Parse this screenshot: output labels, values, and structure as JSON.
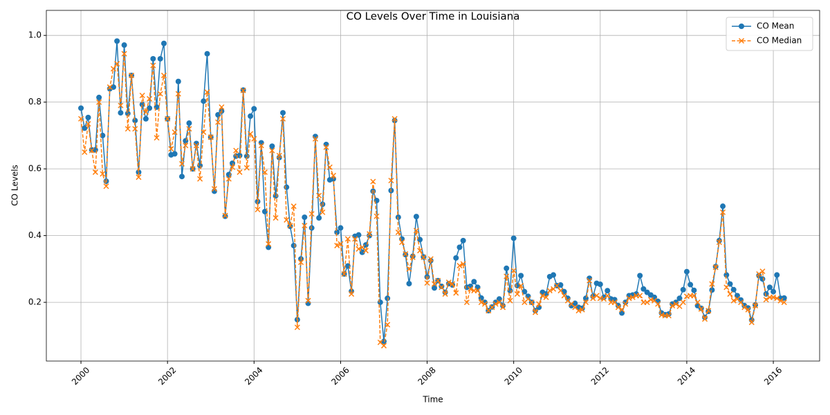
{
  "chart_data": {
    "type": "line",
    "title": "CO Levels Over Time in Louisiana",
    "xlabel": "Time",
    "ylabel": "CO Levels",
    "xlim": [
      1999.2,
      2017.07
    ],
    "ylim": [
      0.024,
      1.075
    ],
    "xticks": [
      2000,
      2002,
      2004,
      2006,
      2008,
      2010,
      2012,
      2014,
      2016
    ],
    "yticks": [
      0.2,
      0.4,
      0.6,
      0.8,
      {
        "value": 1,
        "label": "1.0"
      }
    ],
    "grid": true,
    "legend": "upper right",
    "x": [
      2000,
      2000.083,
      2000.167,
      2000.25,
      2000.333,
      2000.417,
      2000.5,
      2000.583,
      2000.667,
      2000.75,
      2000.833,
      2000.917,
      2001,
      2001.083,
      2001.167,
      2001.25,
      2001.333,
      2001.417,
      2001.5,
      2001.583,
      2001.667,
      2001.75,
      2001.833,
      2001.917,
      2002,
      2002.083,
      2002.167,
      2002.25,
      2002.333,
      2002.417,
      2002.5,
      2002.583,
      2002.667,
      2002.75,
      2002.833,
      2002.917,
      2003,
      2003.083,
      2003.167,
      2003.25,
      2003.333,
      2003.417,
      2003.5,
      2003.583,
      2003.667,
      2003.75,
      2003.833,
      2003.917,
      2004,
      2004.083,
      2004.167,
      2004.25,
      2004.333,
      2004.417,
      2004.5,
      2004.583,
      2004.667,
      2004.75,
      2004.833,
      2004.917,
      2005,
      2005.083,
      2005.167,
      2005.25,
      2005.333,
      2005.417,
      2005.5,
      2005.583,
      2005.667,
      2005.75,
      2005.833,
      2005.917,
      2006,
      2006.083,
      2006.167,
      2006.25,
      2006.333,
      2006.417,
      2006.5,
      2006.583,
      2006.667,
      2006.75,
      2006.833,
      2006.917,
      2007,
      2007.083,
      2007.167,
      2007.25,
      2007.333,
      2007.417,
      2007.5,
      2007.583,
      2007.667,
      2007.75,
      2007.833,
      2007.917,
      2008,
      2008.083,
      2008.167,
      2008.25,
      2008.333,
      2008.417,
      2008.5,
      2008.583,
      2008.667,
      2008.75,
      2008.833,
      2008.917,
      2009,
      2009.083,
      2009.167,
      2009.25,
      2009.333,
      2009.417,
      2009.5,
      2009.583,
      2009.667,
      2009.75,
      2009.833,
      2009.917,
      2010,
      2010.083,
      2010.167,
      2010.25,
      2010.333,
      2010.417,
      2010.5,
      2010.583,
      2010.667,
      2010.75,
      2010.833,
      2010.917,
      2011,
      2011.083,
      2011.167,
      2011.25,
      2011.333,
      2011.417,
      2011.5,
      2011.583,
      2011.667,
      2011.75,
      2011.833,
      2011.917,
      2012,
      2012.083,
      2012.167,
      2012.25,
      2012.333,
      2012.417,
      2012.5,
      2012.583,
      2012.667,
      2012.75,
      2012.833,
      2012.917,
      2013,
      2013.083,
      2013.167,
      2013.25,
      2013.333,
      2013.417,
      2013.5,
      2013.583,
      2013.667,
      2013.75,
      2013.833,
      2013.917,
      2014,
      2014.083,
      2014.167,
      2014.25,
      2014.333,
      2014.417,
      2014.5,
      2014.583,
      2014.667,
      2014.75,
      2014.833,
      2014.917,
      2015,
      2015.083,
      2015.167,
      2015.25,
      2015.333,
      2015.417,
      2015.5,
      2015.583,
      2015.667,
      2015.75,
      2015.833,
      2015.917,
      2016,
      2016.083,
      2016.167,
      2016.25
    ],
    "series": [
      {
        "name": "CO Mean",
        "color": "#1f77b4",
        "marker": "o",
        "linestyle": "solid",
        "values": [
          0.782,
          0.722,
          0.754,
          0.657,
          0.657,
          0.814,
          0.7,
          0.563,
          0.84,
          0.845,
          0.983,
          0.768,
          0.971,
          0.766,
          0.88,
          0.745,
          0.59,
          0.793,
          0.75,
          0.782,
          0.93,
          0.785,
          0.93,
          0.976,
          0.75,
          0.642,
          0.645,
          0.862,
          0.577,
          0.684,
          0.737,
          0.6,
          0.676,
          0.61,
          0.803,
          0.945,
          0.695,
          0.533,
          0.762,
          0.773,
          0.458,
          0.583,
          0.617,
          0.638,
          0.64,
          0.836,
          0.638,
          0.758,
          0.78,
          0.502,
          0.678,
          0.472,
          0.365,
          0.668,
          0.519,
          0.634,
          0.768,
          0.545,
          0.428,
          0.37,
          0.148,
          0.33,
          0.455,
          0.197,
          0.423,
          0.697,
          0.453,
          0.494,
          0.673,
          0.567,
          0.57,
          0.41,
          0.423,
          0.285,
          0.309,
          0.233,
          0.398,
          0.402,
          0.35,
          0.372,
          0.4,
          0.533,
          0.505,
          0.2,
          0.083,
          0.212,
          0.535,
          0.745,
          0.455,
          0.39,
          0.343,
          0.256,
          0.338,
          0.457,
          0.388,
          0.336,
          0.276,
          0.325,
          0.243,
          0.265,
          0.248,
          0.23,
          0.256,
          0.252,
          0.333,
          0.365,
          0.385,
          0.245,
          0.248,
          0.262,
          0.245,
          0.213,
          0.2,
          0.175,
          0.186,
          0.2,
          0.21,
          0.19,
          0.302,
          0.235,
          0.392,
          0.25,
          0.28,
          0.232,
          0.218,
          0.2,
          0.175,
          0.185,
          0.23,
          0.225,
          0.277,
          0.282,
          0.25,
          0.252,
          0.232,
          0.212,
          0.19,
          0.197,
          0.185,
          0.182,
          0.212,
          0.272,
          0.218,
          0.257,
          0.254,
          0.215,
          0.235,
          0.21,
          0.208,
          0.19,
          0.168,
          0.2,
          0.22,
          0.222,
          0.225,
          0.28,
          0.24,
          0.23,
          0.222,
          0.215,
          0.203,
          0.168,
          0.163,
          0.165,
          0.195,
          0.2,
          0.212,
          0.238,
          0.292,
          0.253,
          0.236,
          0.19,
          0.182,
          0.155,
          0.173,
          0.237,
          0.307,
          0.385,
          0.488,
          0.282,
          0.255,
          0.238,
          0.22,
          0.207,
          0.19,
          0.183,
          0.147,
          0.192,
          0.28,
          0.27,
          0.225,
          0.245,
          0.232,
          0.282,
          0.212,
          0.213
        ]
      },
      {
        "name": "CO Median",
        "color": "#ff7f0e",
        "marker": "x",
        "linestyle": "dashed",
        "values": [
          0.75,
          0.65,
          0.735,
          0.655,
          0.59,
          0.8,
          0.585,
          0.548,
          0.845,
          0.9,
          0.915,
          0.79,
          0.945,
          0.72,
          0.88,
          0.72,
          0.575,
          0.82,
          0.77,
          0.81,
          0.91,
          0.693,
          0.825,
          0.88,
          0.75,
          0.66,
          0.71,
          0.825,
          0.615,
          0.67,
          0.72,
          0.6,
          0.67,
          0.57,
          0.71,
          0.83,
          0.695,
          0.54,
          0.74,
          0.785,
          0.46,
          0.57,
          0.605,
          0.655,
          0.59,
          0.835,
          0.603,
          0.705,
          0.69,
          0.478,
          0.67,
          0.59,
          0.375,
          0.655,
          0.453,
          0.64,
          0.75,
          0.447,
          0.43,
          0.488,
          0.125,
          0.32,
          0.43,
          0.205,
          0.465,
          0.69,
          0.52,
          0.47,
          0.665,
          0.605,
          0.58,
          0.37,
          0.375,
          0.285,
          0.39,
          0.225,
          0.39,
          0.36,
          0.365,
          0.355,
          0.405,
          0.562,
          0.458,
          0.08,
          0.07,
          0.133,
          0.565,
          0.75,
          0.41,
          0.38,
          0.345,
          0.3,
          0.335,
          0.415,
          0.355,
          0.335,
          0.258,
          0.33,
          0.255,
          0.265,
          0.245,
          0.225,
          0.26,
          0.255,
          0.228,
          0.31,
          0.315,
          0.2,
          0.24,
          0.235,
          0.235,
          0.2,
          0.195,
          0.175,
          0.185,
          0.195,
          0.2,
          0.185,
          0.278,
          0.205,
          0.295,
          0.225,
          0.25,
          0.2,
          0.21,
          0.2,
          0.17,
          0.195,
          0.22,
          0.215,
          0.235,
          0.24,
          0.25,
          0.235,
          0.22,
          0.205,
          0.195,
          0.185,
          0.175,
          0.178,
          0.2,
          0.265,
          0.212,
          0.22,
          0.212,
          0.21,
          0.22,
          0.2,
          0.2,
          0.185,
          0.178,
          0.195,
          0.212,
          0.215,
          0.22,
          0.22,
          0.2,
          0.2,
          0.208,
          0.205,
          0.195,
          0.162,
          0.16,
          0.16,
          0.19,
          0.195,
          0.188,
          0.2,
          0.218,
          0.22,
          0.22,
          0.2,
          0.18,
          0.15,
          0.175,
          0.255,
          0.305,
          0.38,
          0.47,
          0.245,
          0.225,
          0.205,
          0.21,
          0.2,
          0.185,
          0.178,
          0.14,
          0.19,
          0.285,
          0.293,
          0.208,
          0.215,
          0.215,
          0.212,
          0.205,
          0.2
        ]
      }
    ]
  }
}
